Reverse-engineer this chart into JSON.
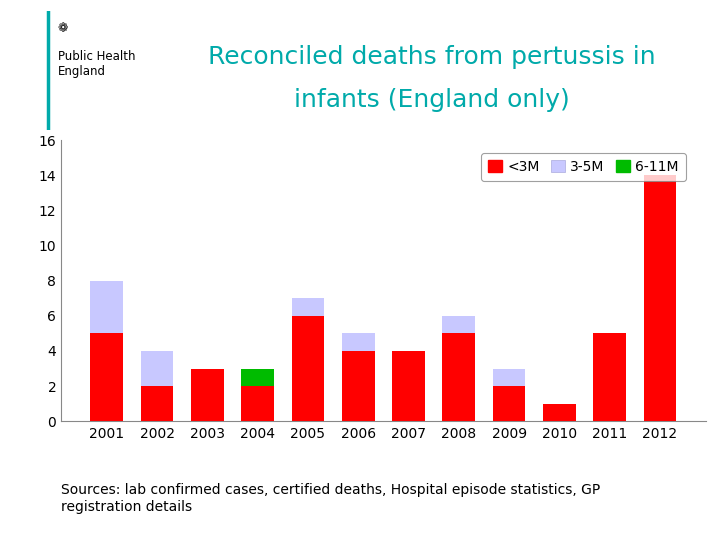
{
  "years": [
    2001,
    2002,
    2003,
    2004,
    2005,
    2006,
    2007,
    2008,
    2009,
    2010,
    2011,
    2012
  ],
  "red": [
    5,
    2,
    3,
    2,
    6,
    4,
    4,
    5,
    2,
    1,
    5,
    14
  ],
  "blue": [
    3,
    2,
    0,
    0,
    1,
    1,
    0,
    1,
    1,
    0,
    0,
    0
  ],
  "green": [
    0,
    0,
    0,
    1,
    0,
    0,
    0,
    0,
    0,
    0,
    0,
    0
  ],
  "red_color": "#FF0000",
  "blue_color": "#C8C8FF",
  "green_color": "#00BB00",
  "title_line1": "Reconciled deaths from pertussis in",
  "title_line2": "infants (England only)",
  "title_color": "#00AAAA",
  "title_fontsize": 18,
  "ylim": [
    0,
    16
  ],
  "yticks": [
    0,
    2,
    4,
    6,
    8,
    10,
    12,
    14,
    16
  ],
  "legend_labels": [
    "<3M",
    "3-5M",
    "6-11M"
  ],
  "source_text": "Sources: lab confirmed cases, certified deaths, Hospital episode statistics, GP\nregistration details",
  "source_fontsize": 10,
  "bar_width": 0.65,
  "background_color": "#FFFFFF",
  "phe_text": "Public Health\nEngland",
  "tick_fontsize": 10,
  "legend_fontsize": 10
}
